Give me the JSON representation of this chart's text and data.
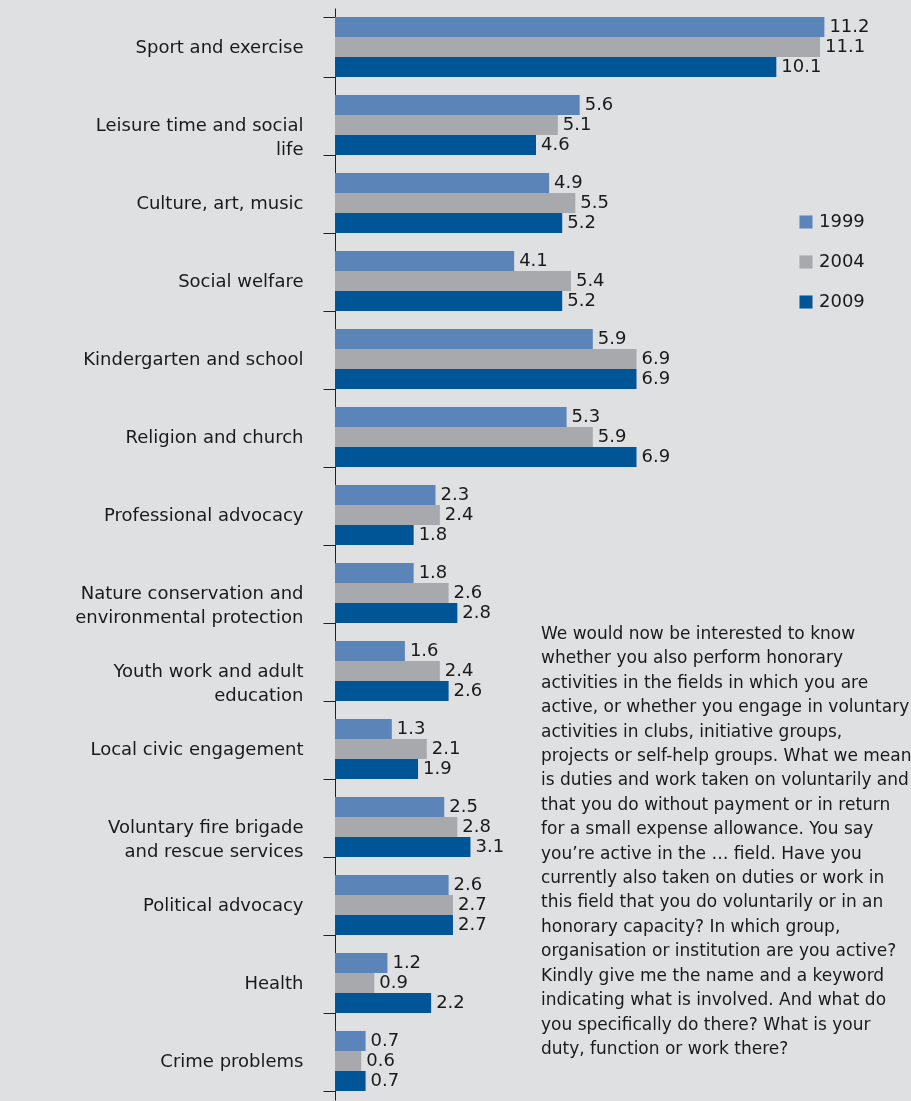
{
  "chart_data": {
    "type": "bar",
    "orientation": "horizontal",
    "data_labels": true,
    "legend": "right",
    "categories": [
      "Sport and exercise",
      "Leisure time and social life",
      "Culture, art, music",
      "Social welfare",
      "Kindergarten and school",
      "Religion and church",
      "Professional advocacy",
      "Nature conservation and environmental protection",
      "Youth work and adult education",
      "Local civic engagement",
      "Voluntary fire brigade and rescue services",
      "Political advocacy",
      "Health",
      "Crime problems"
    ],
    "series": [
      {
        "name": "1999",
        "color": "#5b84b8",
        "values": [
          11.2,
          5.6,
          4.9,
          4.1,
          5.9,
          5.3,
          2.3,
          1.8,
          1.6,
          1.3,
          2.5,
          2.6,
          1.2,
          0.7
        ]
      },
      {
        "name": "2004",
        "color": "#a8a9ad",
        "values": [
          11.1,
          5.1,
          5.5,
          5.4,
          6.9,
          5.9,
          2.4,
          2.6,
          2.4,
          2.1,
          2.8,
          2.7,
          0.9,
          0.6
        ]
      },
      {
        "name": "2009",
        "color": "#005596",
        "values": [
          10.1,
          4.6,
          5.2,
          5.2,
          6.9,
          6.9,
          1.8,
          2.8,
          2.6,
          1.9,
          3.1,
          2.7,
          2.2,
          0.7
        ]
      }
    ],
    "annotations": [
      "We would now be interested to know whether you also perform honorary activities in the fields in which you are active, or whether you engage in voluntary activities in clubs, initiative groups, projects or self-help groups. What we mean is duties and work taken on voluntarily and that you do without payment or in return for a small expense allowance. You say you’re active in the … field. Have you currently also taken on duties or work in this field that you do voluntarily or in an honorary capacity? In which group, organisation or institution are you active? Kindly give me the name and a keyword indicating what is involved. And what do you specifically do there? What is your duty, function or work there?"
    ]
  }
}
